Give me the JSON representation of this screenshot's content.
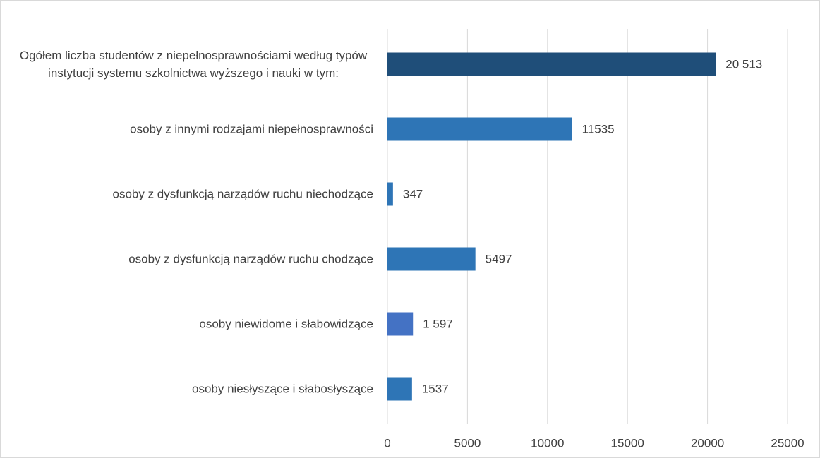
{
  "chart_data": {
    "type": "barh",
    "categories": [
      "Ogółem liczba studentów z niepełnosprawnościami według typów instytucji systemu szkolnictwa wyższego i nauki w tym:",
      "osoby z innymi rodzajami niepełnosprawności",
      "osoby z dysfunkcją narządów ruchu niechodzące",
      "osoby z dysfunkcją narządów ruchu chodzące",
      "osoby niewidome i słabowidzące",
      "osoby niesłyszące i słabosłyszące"
    ],
    "values": [
      20513,
      11535,
      347,
      5497,
      1597,
      1537
    ],
    "value_labels": [
      "20 513",
      "11535",
      "347",
      "5497",
      "1 597",
      "1537"
    ],
    "colors": [
      "#1f4e79",
      "#2e75b6",
      "#2e75b6",
      "#2e75b6",
      "#4472c4",
      "#2e75b6"
    ],
    "xlim": [
      0,
      25000
    ],
    "xticks": [
      0,
      5000,
      10000,
      15000,
      20000,
      25000
    ],
    "grid": true
  }
}
